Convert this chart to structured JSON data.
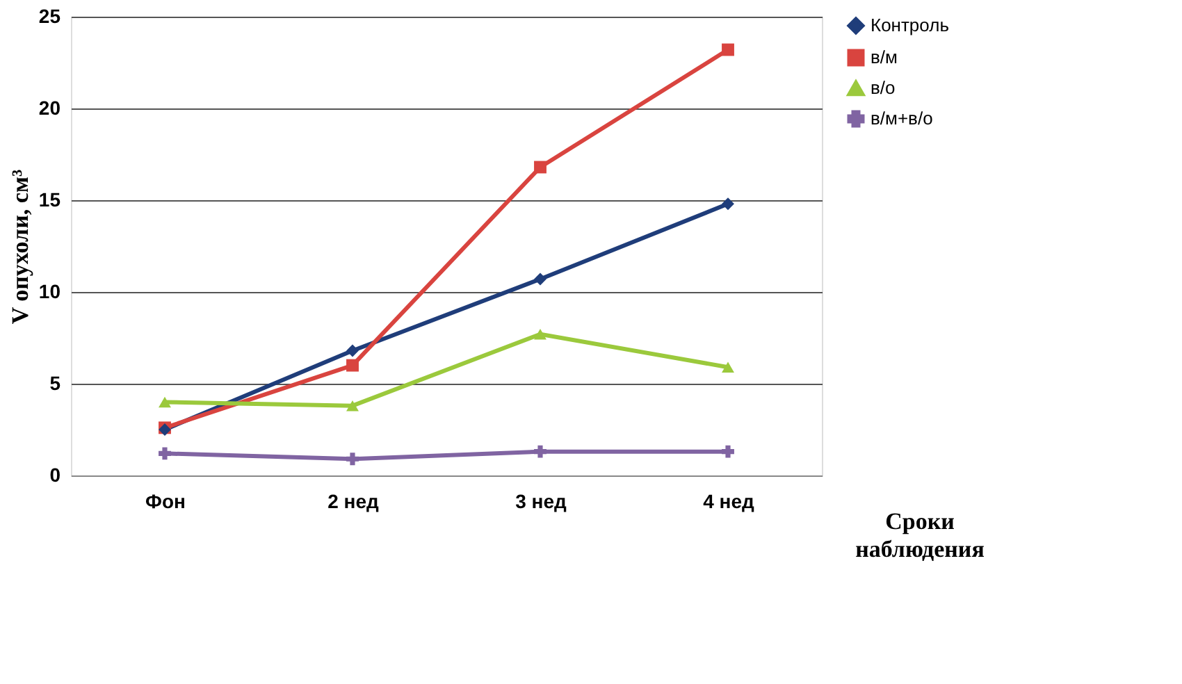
{
  "chart_data": {
    "type": "line",
    "ylabel": "V опухоли, см³",
    "xlabel": "Сроки наблюдения",
    "categories": [
      "Фон",
      "2 нед",
      "3 нед",
      "4 нед"
    ],
    "series": [
      {
        "name": "Контроль",
        "color": "#1f3d7a",
        "marker": "diamond",
        "values": [
          2.5,
          6.8,
          10.7,
          14.8
        ]
      },
      {
        "name": "в/м",
        "color": "#d9443f",
        "marker": "square",
        "values": [
          2.6,
          6.0,
          16.8,
          23.2
        ]
      },
      {
        "name": "в/о",
        "color": "#9bc93c",
        "marker": "triangle",
        "values": [
          4.0,
          3.8,
          7.7,
          5.9
        ]
      },
      {
        "name": "в/м+в/о",
        "color": "#8064a2",
        "marker": "cross",
        "values": [
          1.2,
          0.9,
          1.3,
          1.3
        ]
      }
    ],
    "ylim": [
      0,
      25
    ],
    "yticks": [
      0,
      5,
      10,
      15,
      20,
      25
    ],
    "grid": "y",
    "legend": "right",
    "line_style": "solid"
  }
}
